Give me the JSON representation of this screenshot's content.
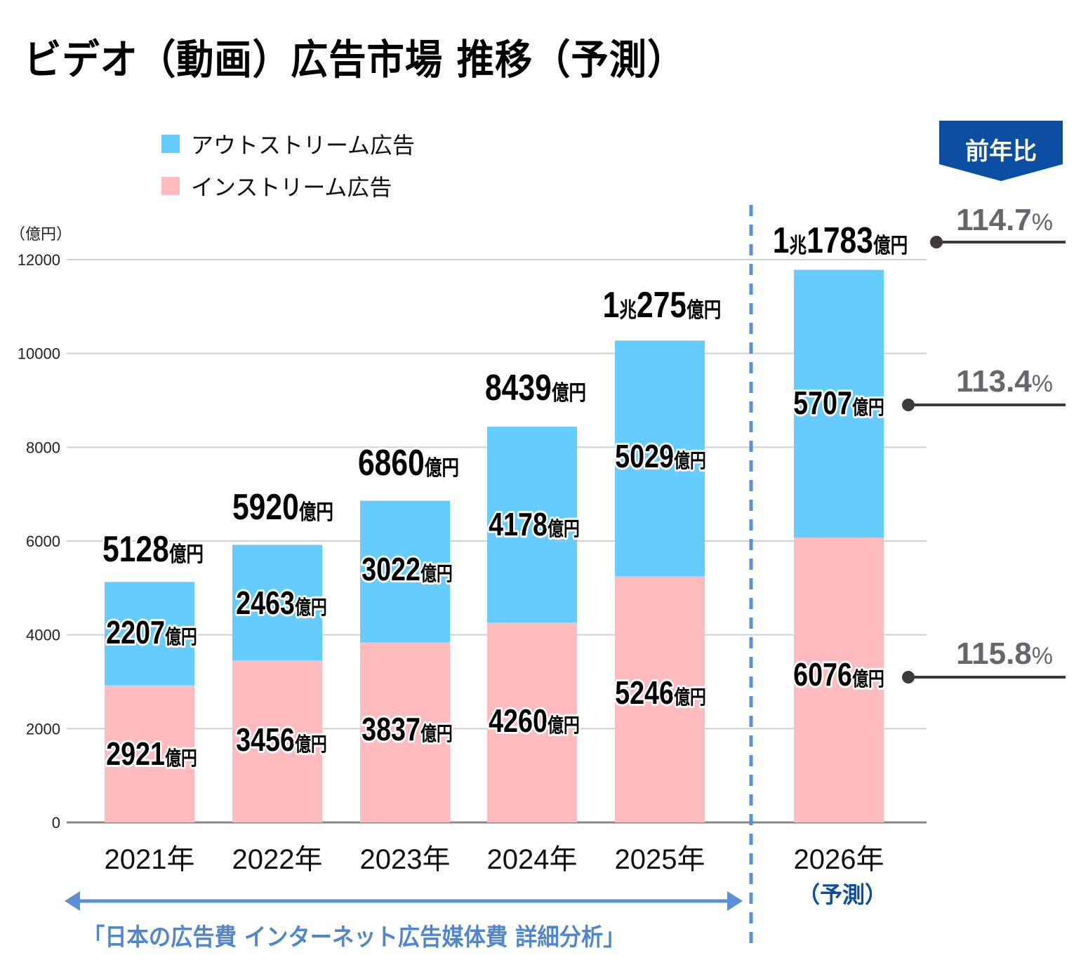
{
  "title": "ビデオ（動画）広告市場 推移（予測）",
  "legend": [
    {
      "label": "アウトストリーム広告",
      "color": "#66ccff"
    },
    {
      "label": "インストリーム広告",
      "color": "#ffbbbd"
    }
  ],
  "yoy_badge": {
    "label": "前年比",
    "color": "#0b4ea2"
  },
  "unit_label": "（億円）",
  "forecast_note": "（予測）",
  "source_note": "「日本の広告費 インターネット広告媒体費 詳細分析」",
  "colors": {
    "outstream": "#66ccff",
    "instream": "#ffbbbd",
    "grid": "#d0d0d0",
    "axis": "#888888",
    "separator": "#5b8fd6",
    "arrow": "#5b8fd6",
    "yoy_text": "#66666e",
    "yoy_line": "#3e3a3a"
  },
  "chart_data": {
    "type": "bar",
    "stacked": true,
    "title": "ビデオ（動画）広告市場 推移（予測）",
    "ylabel": "（億円）",
    "xlabel": "",
    "ylim": [
      0,
      12000
    ],
    "yticks": [
      0,
      2000,
      4000,
      6000,
      8000,
      10000,
      12000
    ],
    "grid": true,
    "legend_position": "top-left",
    "categories": [
      "2021年",
      "2022年",
      "2023年",
      "2024年",
      "2025年",
      "2026年"
    ],
    "series": [
      {
        "name": "インストリーム広告",
        "values": [
          2921,
          3456,
          3837,
          4260,
          5246,
          6076
        ],
        "labels": [
          "2921",
          "3456",
          "3837",
          "4260",
          "5246",
          "6076"
        ]
      },
      {
        "name": "アウトストリーム広告",
        "values": [
          2207,
          2463,
          3022,
          4178,
          5029,
          5707
        ],
        "labels": [
          "2207",
          "2463",
          "3022",
          "4178",
          "5029",
          "5707"
        ]
      }
    ],
    "totals": [
      5128,
      5920,
      6860,
      8439,
      10275,
      11783
    ],
    "total_labels": [
      {
        "cho": "",
        "oku": "5128"
      },
      {
        "cho": "",
        "oku": "5920"
      },
      {
        "cho": "",
        "oku": "6860"
      },
      {
        "cho": "",
        "oku": "8439"
      },
      {
        "cho": "1",
        "oku": "275"
      },
      {
        "cho": "1",
        "oku": "1783"
      }
    ],
    "unit_oku": "億円",
    "unit_cho": "兆",
    "forecast_category_index": 5,
    "forecast_note": "（予測）",
    "yoy": [
      {
        "target": "total",
        "value": "114.7%"
      },
      {
        "target": "アウトストリーム広告",
        "value": "113.4%"
      },
      {
        "target": "インストリーム広告",
        "value": "115.8%"
      }
    ],
    "annotations": [
      "「日本の広告費 インターネット広告媒体費 詳細分析」",
      "前年比"
    ]
  }
}
